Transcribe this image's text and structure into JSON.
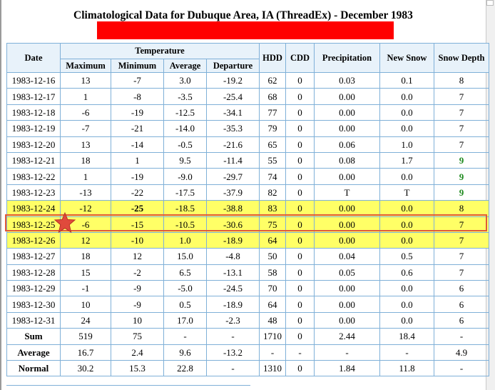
{
  "title": "Climatological Data for Dubuque Area, IA (ThreadEx) - December 1983",
  "headers": {
    "date": "Date",
    "temperature": "Temperature",
    "maximum": "Maximum",
    "minimum": "Minimum",
    "average": "Average",
    "departure": "Departure",
    "hdd": "HDD",
    "cdd": "CDD",
    "precipitation": "Precipitation",
    "new_snow": "New Snow",
    "snow_depth": "Snow Depth"
  },
  "rows": [
    {
      "date": "1983-12-16",
      "max": "13",
      "min": "-7",
      "avg": "3.0",
      "dep": "-19.2",
      "hdd": "62",
      "cdd": "0",
      "precip": "0.03",
      "snow": "0.1",
      "depth": "8"
    },
    {
      "date": "1983-12-17",
      "max": "1",
      "min": "-8",
      "avg": "-3.5",
      "dep": "-25.4",
      "hdd": "68",
      "cdd": "0",
      "precip": "0.00",
      "snow": "0.0",
      "depth": "7"
    },
    {
      "date": "1983-12-18",
      "max": "-6",
      "min": "-19",
      "avg": "-12.5",
      "dep": "-34.1",
      "hdd": "77",
      "cdd": "0",
      "precip": "0.00",
      "snow": "0.0",
      "depth": "7"
    },
    {
      "date": "1983-12-19",
      "max": "-7",
      "min": "-21",
      "avg": "-14.0",
      "dep": "-35.3",
      "hdd": "79",
      "cdd": "0",
      "precip": "0.00",
      "snow": "0.0",
      "depth": "7"
    },
    {
      "date": "1983-12-20",
      "max": "13",
      "min": "-14",
      "avg": "-0.5",
      "dep": "-21.6",
      "hdd": "65",
      "cdd": "0",
      "precip": "0.06",
      "snow": "1.0",
      "depth": "7"
    },
    {
      "date": "1983-12-21",
      "max": "18",
      "min": "1",
      "avg": "9.5",
      "dep": "-11.4",
      "hdd": "55",
      "cdd": "0",
      "precip": "0.08",
      "snow": "1.7",
      "depth": "9",
      "depth_green": true
    },
    {
      "date": "1983-12-22",
      "max": "1",
      "min": "-19",
      "avg": "-9.0",
      "dep": "-29.7",
      "hdd": "74",
      "cdd": "0",
      "precip": "0.00",
      "snow": "0.0",
      "depth": "9",
      "depth_green": true
    },
    {
      "date": "1983-12-23",
      "max": "-13",
      "min": "-22",
      "avg": "-17.5",
      "dep": "-37.9",
      "hdd": "82",
      "cdd": "0",
      "precip": "T",
      "snow": "T",
      "depth": "9",
      "depth_green": true
    },
    {
      "date": "1983-12-24",
      "max": "-12",
      "min": "-25",
      "avg": "-18.5",
      "dep": "-38.8",
      "hdd": "83",
      "cdd": "0",
      "precip": "0.00",
      "snow": "0.0",
      "depth": "8",
      "highlight": true,
      "min_bold": true
    },
    {
      "date": "1983-12-25",
      "max": "-6",
      "min": "-15",
      "avg": "-10.5",
      "dep": "-30.6",
      "hdd": "75",
      "cdd": "0",
      "precip": "0.00",
      "snow": "0.0",
      "depth": "7",
      "highlight": true
    },
    {
      "date": "1983-12-26",
      "max": "12",
      "min": "-10",
      "avg": "1.0",
      "dep": "-18.9",
      "hdd": "64",
      "cdd": "0",
      "precip": "0.00",
      "snow": "0.0",
      "depth": "7",
      "highlight": true
    },
    {
      "date": "1983-12-27",
      "max": "18",
      "min": "12",
      "avg": "15.0",
      "dep": "-4.8",
      "hdd": "50",
      "cdd": "0",
      "precip": "0.04",
      "snow": "0.5",
      "depth": "7"
    },
    {
      "date": "1983-12-28",
      "max": "15",
      "min": "-2",
      "avg": "6.5",
      "dep": "-13.1",
      "hdd": "58",
      "cdd": "0",
      "precip": "0.05",
      "snow": "0.6",
      "depth": "7"
    },
    {
      "date": "1983-12-29",
      "max": "-1",
      "min": "-9",
      "avg": "-5.0",
      "dep": "-24.5",
      "hdd": "70",
      "cdd": "0",
      "precip": "0.00",
      "snow": "0.0",
      "depth": "6"
    },
    {
      "date": "1983-12-30",
      "max": "10",
      "min": "-9",
      "avg": "0.5",
      "dep": "-18.9",
      "hdd": "64",
      "cdd": "0",
      "precip": "0.00",
      "snow": "0.0",
      "depth": "6"
    },
    {
      "date": "1983-12-31",
      "max": "24",
      "min": "10",
      "avg": "17.0",
      "dep": "-2.3",
      "hdd": "48",
      "cdd": "0",
      "precip": "0.00",
      "snow": "0.0",
      "depth": "6"
    }
  ],
  "summary": [
    {
      "label": "Sum",
      "max": "519",
      "min": "75",
      "avg": "-",
      "dep": "-",
      "hdd": "1710",
      "cdd": "0",
      "precip": "2.44",
      "snow": "18.4",
      "depth": "-"
    },
    {
      "label": "Average",
      "max": "16.7",
      "min": "2.4",
      "avg": "9.6",
      "dep": "-13.2",
      "hdd": "-",
      "cdd": "-",
      "precip": "-",
      "snow": "-",
      "depth": "4.9"
    },
    {
      "label": "Normal",
      "max": "30.2",
      "min": "15.3",
      "avg": "22.8",
      "dep": "-",
      "hdd": "1310",
      "cdd": "0",
      "precip": "1.84",
      "snow": "11.8",
      "depth": "-"
    }
  ],
  "colors": {
    "highlight": "#ffff66",
    "header_bg": "#e8f2fa",
    "border": "#7fb0d8",
    "redaction": "#ff0000",
    "marker_outline": "#e05a3a",
    "snow_depth_green": "#1f8a1f"
  },
  "marker_icon": "red-star-icon"
}
